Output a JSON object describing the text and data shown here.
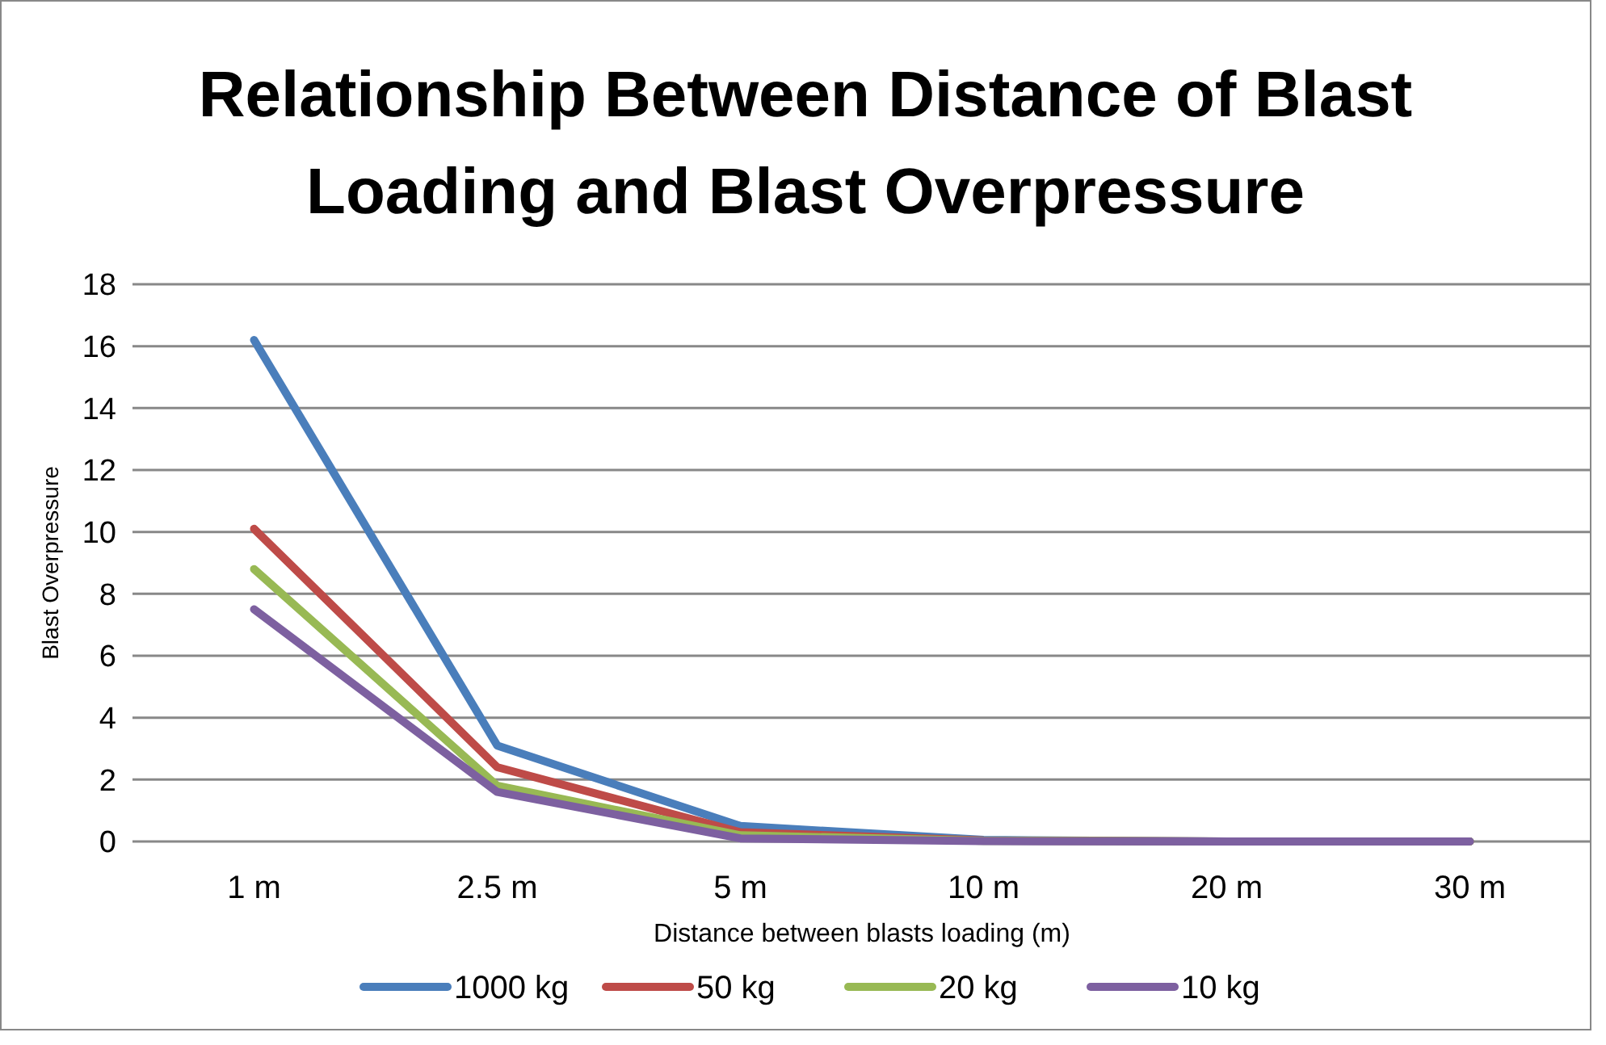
{
  "chart_data": {
    "type": "line",
    "title": "Relationship Between Distance of Blast Loading and Blast Overpressure",
    "xlabel": "Distance between blasts loading (m)",
    "ylabel": "Blast Overpressure",
    "categories": [
      "1 m",
      "2.5 m",
      "5 m",
      "10 m",
      "20 m",
      "30 m"
    ],
    "series": [
      {
        "name": "1000 kg",
        "color": "#4a7ebb",
        "values": [
          16.2,
          3.1,
          0.5,
          0.05,
          0,
          0
        ]
      },
      {
        "name": "50 kg",
        "color": "#be4b48",
        "values": [
          10.1,
          2.4,
          0.3,
          0.03,
          0,
          0
        ]
      },
      {
        "name": "20 kg",
        "color": "#98b954",
        "values": [
          8.8,
          1.8,
          0.2,
          0.02,
          0,
          0
        ]
      },
      {
        "name": "10 kg",
        "color": "#7d60a0",
        "values": [
          7.5,
          1.6,
          0.1,
          0.01,
          0,
          0
        ]
      }
    ],
    "ylim": [
      0,
      18
    ],
    "yticks": [
      0,
      2,
      4,
      6,
      8,
      10,
      12,
      14,
      16,
      18
    ],
    "grid": "y",
    "legend": "bottom",
    "marker": "none",
    "line_style": "solid"
  }
}
